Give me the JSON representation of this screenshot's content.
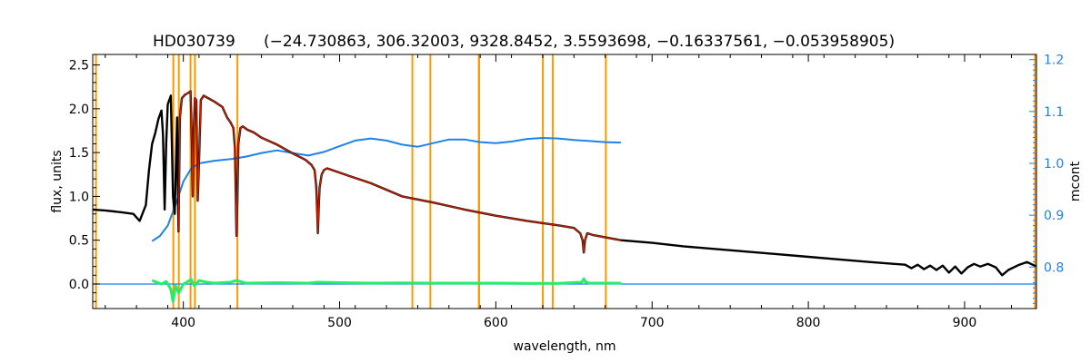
{
  "chart_data": {
    "type": "line",
    "title": "HD030739",
    "subtitle": "(−24.730863, 306.32003, 9328.8452, 3.5593698, −0.16337561, −0.053958905)",
    "xlabel": "wavelength, nm",
    "ylabel": "flux, units",
    "ylabel_right": "mcont",
    "xlim": [
      342,
      946
    ],
    "ylim": [
      -0.28,
      2.62
    ],
    "ylim_right": [
      0.72,
      1.21
    ],
    "x_ticks": [
      400,
      500,
      600,
      700,
      800,
      900
    ],
    "y_ticks": [
      0.0,
      0.5,
      1.0,
      1.5,
      2.0,
      2.5
    ],
    "y_ticks_right": [
      0.8,
      0.9,
      1.0,
      1.1,
      1.2
    ],
    "x_tick_labels": [
      "400",
      "500",
      "600",
      "700",
      "800",
      "900"
    ],
    "y_tick_labels": [
      "0.0",
      "0.5",
      "1.0",
      "1.5",
      "2.0",
      "2.5"
    ],
    "y_tick_labels_right": [
      "0.8",
      "0.9",
      "1.0",
      "1.1",
      "1.2"
    ],
    "grid": false,
    "legend": "none",
    "colors": {
      "observed": "#000000",
      "model": "#cc2200",
      "continuum": "#1e82e6",
      "residual": "#22ee66",
      "masked": "#ff9900",
      "right_axis": "#1e82e6",
      "zero_line": "#1e82e6"
    },
    "masked_regions": [
      [
        393.0,
        393.8
      ],
      [
        396.5,
        397.4
      ],
      [
        404.0,
        405.2
      ],
      [
        406.8,
        407.6
      ],
      [
        434.0,
        434.8
      ],
      [
        546.0,
        547.0
      ],
      [
        557.5,
        558.4
      ],
      [
        588.5,
        589.9
      ],
      [
        629.5,
        630.5
      ],
      [
        635.8,
        636.6
      ],
      [
        669.8,
        670.8
      ],
      [
        343.5,
        344.2
      ],
      [
        944.5,
        946.0
      ]
    ],
    "series": [
      {
        "role": "observed",
        "axis": "left",
        "x": [
          342,
          350,
          360,
          368,
          372,
          376,
          378,
          380,
          382,
          384,
          386,
          387,
          388,
          389,
          390,
          392,
          393.4,
          394.5,
          396,
          396.9,
          397.8,
          399,
          401,
          403,
          404.6,
          405.5,
          406,
          406.7,
          407.4,
          408.3,
          409.2,
          410.2,
          411.2,
          413,
          416,
          420,
          425,
          428,
          430,
          432,
          433,
          434.0,
          434.5,
          435.2,
          436.5,
          438,
          441,
          445,
          450,
          460,
          470,
          478,
          482,
          484,
          485,
          485.6,
          486.1,
          486.6,
          487.2,
          488.5,
          490,
          492,
          500,
          520,
          540,
          560,
          580,
          600,
          620,
          640,
          650,
          654,
          655.5,
          656.3,
          657.1,
          658.5,
          662,
          680,
          700,
          720,
          740,
          760,
          780,
          800,
          820,
          840,
          855,
          862,
          866,
          870,
          874,
          878,
          882,
          886,
          890,
          894,
          898,
          902,
          906,
          910,
          915,
          920,
          924,
          928,
          935,
          940,
          946
        ],
        "y": [
          0.85,
          0.84,
          0.82,
          0.8,
          0.72,
          0.9,
          1.3,
          1.6,
          1.72,
          1.88,
          1.98,
          1.7,
          0.85,
          1.6,
          2.05,
          2.15,
          1.0,
          0.8,
          1.9,
          0.6,
          1.9,
          2.12,
          2.16,
          2.18,
          2.2,
          1.6,
          1.0,
          1.8,
          2.12,
          2.1,
          0.95,
          1.5,
          2.1,
          2.15,
          2.12,
          2.08,
          2.02,
          1.9,
          1.85,
          1.78,
          1.55,
          0.55,
          0.9,
          1.6,
          1.78,
          1.8,
          1.76,
          1.73,
          1.67,
          1.59,
          1.49,
          1.42,
          1.36,
          1.3,
          1.12,
          0.85,
          0.58,
          0.85,
          1.1,
          1.25,
          1.3,
          1.32,
          1.27,
          1.15,
          1.0,
          0.93,
          0.85,
          0.78,
          0.72,
          0.67,
          0.64,
          0.58,
          0.5,
          0.36,
          0.5,
          0.58,
          0.56,
          0.5,
          0.47,
          0.43,
          0.4,
          0.37,
          0.34,
          0.31,
          0.28,
          0.25,
          0.23,
          0.22,
          0.18,
          0.22,
          0.17,
          0.21,
          0.16,
          0.21,
          0.13,
          0.2,
          0.12,
          0.19,
          0.23,
          0.2,
          0.23,
          0.19,
          0.1,
          0.16,
          0.22,
          0.25,
          0.2
        ]
      },
      {
        "role": "model",
        "axis": "left",
        "x": [
          396.9,
          397.8,
          399,
          401,
          403,
          404.6,
          405.5,
          406,
          406.7,
          407.4,
          408.3,
          409.2,
          410.2,
          411.2,
          413,
          416,
          420,
          425,
          428,
          430,
          432,
          433,
          434.0,
          434.5,
          435.2,
          436.5,
          438,
          441,
          445,
          450,
          460,
          470,
          478,
          482,
          484,
          485,
          485.6,
          486.1,
          486.6,
          487.2,
          488.5,
          490,
          492,
          500,
          520,
          540,
          560,
          580,
          600,
          620,
          640,
          650,
          654,
          655.5,
          656.3,
          657.1,
          658.5,
          662,
          680
        ],
        "y": [
          0.6,
          1.9,
          2.12,
          2.16,
          2.18,
          2.2,
          1.6,
          1.0,
          1.8,
          2.12,
          2.1,
          0.95,
          1.5,
          2.1,
          2.15,
          2.12,
          2.08,
          2.02,
          1.9,
          1.85,
          1.78,
          1.55,
          0.55,
          0.9,
          1.6,
          1.78,
          1.8,
          1.76,
          1.73,
          1.67,
          1.59,
          1.49,
          1.42,
          1.36,
          1.3,
          1.12,
          0.85,
          0.58,
          0.85,
          1.1,
          1.25,
          1.3,
          1.32,
          1.27,
          1.15,
          1.0,
          0.93,
          0.85,
          0.78,
          0.72,
          0.67,
          0.64,
          0.58,
          0.5,
          0.36,
          0.5,
          0.58,
          0.56,
          0.5
        ]
      },
      {
        "role": "continuum",
        "axis": "right",
        "x": [
          380,
          385,
          390,
          395,
          400,
          405,
          410,
          420,
          430,
          440,
          450,
          460,
          470,
          480,
          490,
          500,
          510,
          520,
          530,
          540,
          550,
          560,
          570,
          580,
          590,
          600,
          610,
          620,
          630,
          640,
          650,
          660,
          670,
          680
        ],
        "y": [
          0.85,
          0.86,
          0.88,
          0.92,
          0.965,
          0.99,
          1.0,
          1.005,
          1.008,
          1.013,
          1.02,
          1.025,
          1.02,
          1.015,
          1.022,
          1.033,
          1.044,
          1.048,
          1.044,
          1.036,
          1.032,
          1.039,
          1.046,
          1.046,
          1.041,
          1.039,
          1.042,
          1.047,
          1.049,
          1.048,
          1.045,
          1.043,
          1.041,
          1.04
        ]
      },
      {
        "role": "residual",
        "axis": "left",
        "x": [
          380,
          383,
          386,
          389,
          392,
          393.4,
          395,
          397,
          400,
          403,
          405,
          407,
          410,
          415,
          420,
          430,
          434,
          440,
          460,
          480,
          486,
          500,
          520,
          540,
          560,
          580,
          600,
          620,
          640,
          655,
          656.3,
          657.5,
          660,
          680
        ],
        "y": [
          0.04,
          0.02,
          0.0,
          0.03,
          -0.06,
          -0.2,
          -0.02,
          -0.1,
          0.0,
          0.03,
          0.05,
          -0.02,
          0.04,
          0.02,
          0.01,
          0.02,
          0.04,
          0.01,
          0.015,
          0.01,
          0.02,
          0.015,
          0.01,
          0.012,
          0.01,
          0.01,
          0.01,
          0.008,
          0.008,
          0.02,
          0.06,
          0.02,
          0.01,
          0.01
        ]
      }
    ],
    "zero_line": {
      "y": 0.0,
      "x_from": 342,
      "x_to": 946
    }
  }
}
